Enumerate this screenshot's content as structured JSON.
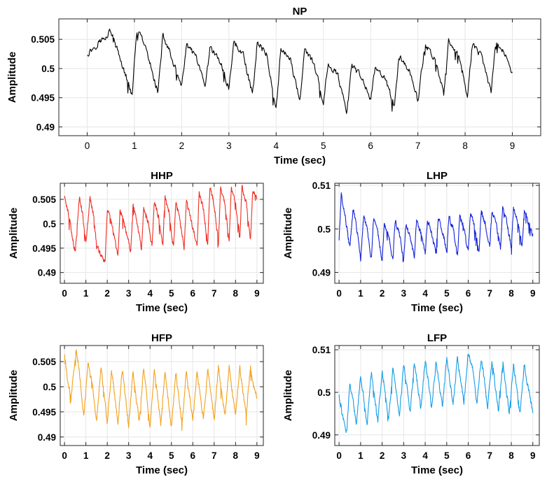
{
  "chart_data": [
    {
      "type": "line",
      "title": "NP",
      "xlabel": "Time (sec)",
      "ylabel": "Amplitude",
      "xlim": [
        -0.6,
        9.6
      ],
      "ylim": [
        0.4885,
        0.5085
      ],
      "xticks": [
        0,
        1,
        2,
        3,
        4,
        5,
        6,
        7,
        8,
        9
      ],
      "yticks": [
        0.49,
        0.495,
        0.5,
        0.505
      ],
      "ytick_labels": [
        "0.49",
        "0.495",
        "0.5",
        "0.505"
      ],
      "grid": true,
      "series": [
        {
          "color": "#000000",
          "x": [
            0.0,
            0.5,
            0.95,
            1.05,
            1.2,
            1.5,
            1.6,
            1.75,
            2.0,
            2.1,
            2.3,
            2.5,
            2.6,
            2.8,
            3.0,
            3.1,
            3.3,
            3.5,
            3.6,
            3.8,
            4.0,
            4.1,
            4.3,
            4.5,
            4.6,
            4.8,
            5.0,
            5.1,
            5.3,
            5.5,
            5.6,
            5.8,
            6.0,
            6.1,
            6.3,
            6.5,
            6.6,
            6.8,
            7.0,
            7.15,
            7.35,
            7.55,
            7.65,
            7.85,
            8.05,
            8.15,
            8.35,
            8.55,
            8.65,
            8.85,
            9.0
          ],
          "y": [
            0.5025,
            0.5065,
            0.4955,
            0.5065,
            0.5045,
            0.496,
            0.5055,
            0.503,
            0.4965,
            0.504,
            0.502,
            0.4965,
            0.5035,
            0.5015,
            0.4965,
            0.5045,
            0.5025,
            0.4955,
            0.5045,
            0.5025,
            0.493,
            0.5035,
            0.5015,
            0.4945,
            0.503,
            0.501,
            0.494,
            0.501,
            0.499,
            0.4925,
            0.5005,
            0.4985,
            0.4945,
            0.5005,
            0.4985,
            0.4935,
            0.502,
            0.5,
            0.4945,
            0.504,
            0.502,
            0.4955,
            0.5045,
            0.5025,
            0.4955,
            0.504,
            0.502,
            0.496,
            0.5045,
            0.5025,
            0.499
          ]
        }
      ]
    },
    {
      "type": "line",
      "title": "HHP",
      "xlabel": "Time (sec)",
      "ylabel": "Amplitude",
      "xlim": [
        -0.2,
        9.3
      ],
      "ylim": [
        0.4878,
        0.5083
      ],
      "xticks": [
        0,
        1,
        2,
        3,
        4,
        5,
        6,
        7,
        8,
        9
      ],
      "yticks": [
        0.49,
        0.495,
        0.5,
        0.505
      ],
      "ytick_labels": [
        "0.49",
        "0.495",
        "0.5",
        "0.505"
      ],
      "grid": true,
      "series": [
        {
          "color": "#ee2e24",
          "x": [
            0.0,
            0.15,
            0.3,
            0.5,
            0.7,
            0.85,
            1.0,
            1.2,
            1.35,
            1.5,
            1.9,
            2.0,
            2.2,
            2.5,
            2.6,
            2.8,
            3.1,
            3.2,
            3.4,
            3.6,
            3.7,
            3.9,
            4.1,
            4.2,
            4.4,
            4.6,
            4.7,
            4.9,
            5.1,
            5.2,
            5.4,
            5.6,
            5.7,
            5.9,
            6.2,
            6.3,
            6.5,
            6.7,
            6.8,
            7.0,
            7.2,
            7.3,
            7.5,
            7.7,
            7.8,
            8.0,
            8.2,
            8.3,
            8.5,
            8.7,
            8.8,
            9.0
          ],
          "y": [
            0.5055,
            0.503,
            0.499,
            0.494,
            0.5055,
            0.502,
            0.496,
            0.5055,
            0.502,
            0.4955,
            0.492,
            0.503,
            0.5,
            0.4935,
            0.503,
            0.5,
            0.494,
            0.504,
            0.5005,
            0.4945,
            0.5035,
            0.5005,
            0.4955,
            0.5045,
            0.5015,
            0.4955,
            0.5055,
            0.502,
            0.495,
            0.5045,
            0.501,
            0.495,
            0.5045,
            0.501,
            0.4955,
            0.5065,
            0.503,
            0.4955,
            0.5075,
            0.504,
            0.496,
            0.5075,
            0.504,
            0.4965,
            0.5075,
            0.504,
            0.497,
            0.5075,
            0.504,
            0.497,
            0.5065,
            0.5055
          ]
        }
      ]
    },
    {
      "type": "line",
      "title": "LHP",
      "xlabel": "Time (sec)",
      "ylabel": "Amplitude",
      "xlim": [
        -0.2,
        9.3
      ],
      "ylim": [
        0.4875,
        0.5105
      ],
      "xticks": [
        0,
        1,
        2,
        3,
        4,
        5,
        6,
        7,
        8,
        9
      ],
      "yticks": [
        0.49,
        0.5,
        0.51
      ],
      "ytick_labels": [
        "0.49",
        "0.5",
        "0.51"
      ],
      "grid": true,
      "series": [
        {
          "color": "#1424d8",
          "x": [
            0.0,
            0.1,
            0.25,
            0.5,
            0.65,
            0.8,
            1.0,
            1.15,
            1.3,
            1.5,
            1.6,
            1.8,
            2.0,
            2.1,
            2.3,
            2.5,
            2.6,
            2.8,
            3.0,
            3.1,
            3.3,
            3.5,
            3.6,
            3.8,
            4.0,
            4.1,
            4.3,
            4.5,
            4.6,
            4.8,
            5.0,
            5.1,
            5.3,
            5.5,
            5.6,
            5.8,
            6.0,
            6.1,
            6.3,
            6.5,
            6.6,
            6.8,
            7.0,
            7.1,
            7.3,
            7.5,
            7.6,
            7.8,
            8.0,
            8.1,
            8.3,
            8.5,
            8.6,
            8.8,
            9.0
          ],
          "y": [
            0.4975,
            0.508,
            0.504,
            0.4955,
            0.5045,
            0.501,
            0.493,
            0.503,
            0.5,
            0.493,
            0.502,
            0.499,
            0.4925,
            0.5015,
            0.4985,
            0.4925,
            0.502,
            0.499,
            0.4925,
            0.501,
            0.498,
            0.4935,
            0.502,
            0.499,
            0.494,
            0.502,
            0.499,
            0.4945,
            0.5025,
            0.4995,
            0.4945,
            0.503,
            0.5,
            0.4935,
            0.503,
            0.5,
            0.4945,
            0.5035,
            0.5005,
            0.4945,
            0.504,
            0.501,
            0.4955,
            0.504,
            0.501,
            0.4955,
            0.505,
            0.5015,
            0.4955,
            0.505,
            0.5015,
            0.496,
            0.5045,
            0.5015,
            0.4985
          ]
        }
      ]
    },
    {
      "type": "line",
      "title": "HFP",
      "xlabel": "Time (sec)",
      "ylabel": "Amplitude",
      "xlim": [
        -0.2,
        9.3
      ],
      "ylim": [
        0.4883,
        0.5082
      ],
      "xticks": [
        0,
        1,
        2,
        3,
        4,
        5,
        6,
        7,
        8,
        9
      ],
      "yticks": [
        0.49,
        0.495,
        0.5,
        0.505
      ],
      "ytick_labels": [
        "0.49",
        "0.495",
        "0.5",
        "0.505"
      ],
      "grid": true,
      "series": [
        {
          "color": "#f2a11e",
          "x": [
            0.0,
            0.15,
            0.3,
            0.55,
            0.7,
            0.9,
            1.1,
            1.3,
            1.5,
            1.7,
            1.8,
            2.0,
            2.2,
            2.3,
            2.5,
            2.7,
            2.8,
            3.0,
            3.2,
            3.3,
            3.5,
            3.7,
            3.8,
            4.0,
            4.2,
            4.3,
            4.5,
            4.7,
            4.8,
            5.0,
            5.2,
            5.3,
            5.5,
            5.7,
            5.8,
            6.0,
            6.2,
            6.3,
            6.5,
            6.7,
            6.8,
            7.0,
            7.2,
            7.3,
            7.5,
            7.7,
            7.8,
            8.0,
            8.2,
            8.3,
            8.5,
            8.7,
            8.8,
            9.0
          ],
          "y": [
            0.5065,
            0.501,
            0.498,
            0.5075,
            0.503,
            0.494,
            0.5045,
            0.5005,
            0.493,
            0.504,
            0.5005,
            0.4925,
            0.5035,
            0.5,
            0.4925,
            0.5035,
            0.5,
            0.492,
            0.503,
            0.4995,
            0.493,
            0.5035,
            0.5,
            0.492,
            0.5035,
            0.5,
            0.4925,
            0.503,
            0.4995,
            0.492,
            0.503,
            0.4995,
            0.4925,
            0.5035,
            0.5,
            0.4935,
            0.503,
            0.4995,
            0.4935,
            0.5035,
            0.5,
            0.4935,
            0.504,
            0.5005,
            0.494,
            0.504,
            0.5005,
            0.4945,
            0.504,
            0.5005,
            0.4945,
            0.504,
            0.5005,
            0.498
          ]
        }
      ]
    },
    {
      "type": "line",
      "title": "LFP",
      "xlabel": "Time (sec)",
      "ylabel": "Amplitude",
      "xlim": [
        -0.2,
        9.3
      ],
      "ylim": [
        0.4875,
        0.511
      ],
      "xticks": [
        0,
        1,
        2,
        3,
        4,
        5,
        6,
        7,
        8,
        9
      ],
      "yticks": [
        0.49,
        0.5,
        0.51
      ],
      "ytick_labels": [
        "0.49",
        "0.5",
        "0.51"
      ],
      "grid": true,
      "series": [
        {
          "color": "#149de6",
          "x": [
            0.0,
            0.15,
            0.35,
            0.5,
            0.6,
            0.8,
            1.0,
            1.1,
            1.3,
            1.5,
            1.6,
            1.8,
            2.0,
            2.1,
            2.3,
            2.5,
            2.6,
            2.8,
            3.0,
            3.1,
            3.3,
            3.5,
            3.6,
            3.8,
            4.0,
            4.1,
            4.3,
            4.5,
            4.6,
            4.8,
            5.0,
            5.1,
            5.3,
            5.5,
            5.6,
            5.8,
            6.0,
            6.2,
            6.4,
            6.6,
            6.7,
            6.9,
            7.1,
            7.2,
            7.4,
            7.6,
            7.7,
            7.9,
            8.1,
            8.2,
            8.4,
            8.6,
            8.7,
            8.9,
            9.0
          ],
          "y": [
            0.4995,
            0.4945,
            0.4905,
            0.5025,
            0.4995,
            0.4925,
            0.504,
            0.5005,
            0.4925,
            0.5045,
            0.501,
            0.4935,
            0.505,
            0.5015,
            0.494,
            0.5055,
            0.502,
            0.4945,
            0.5065,
            0.503,
            0.4955,
            0.507,
            0.5035,
            0.496,
            0.5075,
            0.504,
            0.4965,
            0.507,
            0.5035,
            0.4965,
            0.508,
            0.5045,
            0.4975,
            0.508,
            0.5045,
            0.4975,
            0.5095,
            0.5055,
            0.4975,
            0.508,
            0.5045,
            0.4965,
            0.5075,
            0.504,
            0.4955,
            0.507,
            0.5035,
            0.495,
            0.5065,
            0.503,
            0.4945,
            0.5065,
            0.503,
            0.4985,
            0.4945
          ]
        }
      ]
    }
  ]
}
